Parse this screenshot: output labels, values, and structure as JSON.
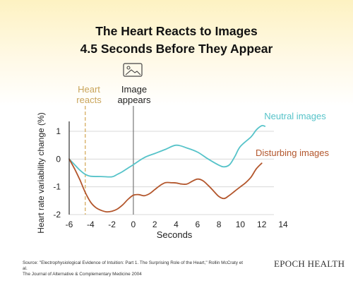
{
  "title": {
    "line1": "The Heart Reacts to Images",
    "line2": "4.5 Seconds Before They Appear"
  },
  "annotations": {
    "heart_reacts": [
      "Heart",
      "reacts"
    ],
    "image_appears": [
      "Image",
      "appears"
    ],
    "image_icon": "image-icon"
  },
  "source": {
    "line1": "Source: \"Electrophysiological Evidence of Intuition: Part 1. The Surprising Role of the Heart,\" Rollin McCraty et al.",
    "line2": "The Journal of Alternative & Complementary Medicine 2004"
  },
  "brand": "EPOCH HEALTH",
  "colors": {
    "neutral": "#56c3c9",
    "disturbing": "#b3562c",
    "heart_reacts": "#d9b36a",
    "image_appears": "#777777",
    "grid": "#d8d8d8",
    "background_top": "#fdf2c2"
  },
  "chart_data": {
    "type": "line",
    "title": "The Heart Reacts to Images 4.5 Seconds Before They Appear",
    "xlabel": "Seconds",
    "ylabel": "Heart rate variability change (%)",
    "xlim": [
      -6,
      14
    ],
    "ylim": [
      -2,
      1
    ],
    "xticks": [
      -6,
      -4,
      -2,
      0,
      2,
      4,
      6,
      8,
      10,
      12,
      14
    ],
    "yticks": [
      1,
      0,
      -1,
      -2
    ],
    "grid": true,
    "legend": "inline labels at line ends (right)",
    "markers": [
      {
        "x": -4.5,
        "label": "Heart reacts",
        "style": "dashed"
      },
      {
        "x": 0,
        "label": "Image appears",
        "style": "solid"
      }
    ],
    "series": [
      {
        "name": "Neutral images",
        "color": "#56c3c9",
        "x": [
          -6,
          -5.5,
          -5,
          -4.5,
          -4,
          -3,
          -2,
          -1.5,
          -1,
          0,
          1,
          2,
          3,
          4,
          5,
          6,
          7,
          8,
          8.5,
          9,
          9.5,
          10,
          11,
          11.5,
          12,
          12.3
        ],
        "y": [
          0.0,
          -0.2,
          -0.4,
          -0.55,
          -0.62,
          -0.63,
          -0.64,
          -0.55,
          -0.45,
          -0.2,
          0.05,
          0.2,
          0.35,
          0.5,
          0.4,
          0.25,
          0.0,
          -0.22,
          -0.28,
          -0.2,
          0.1,
          0.45,
          0.8,
          1.05,
          1.2,
          1.18
        ]
      },
      {
        "name": "Disturbing images",
        "color": "#b3562c",
        "x": [
          -6,
          -5.5,
          -5,
          -4.5,
          -4,
          -3.5,
          -3,
          -2.5,
          -2,
          -1.5,
          -1,
          -0.5,
          0,
          0.5,
          1,
          1.5,
          2,
          2.5,
          3,
          3.5,
          4,
          4.5,
          5,
          5.5,
          6,
          6.5,
          7,
          7.5,
          8,
          8.5,
          9,
          9.5,
          10,
          10.5,
          11,
          11.5,
          12
        ],
        "y": [
          0.0,
          -0.35,
          -0.75,
          -1.2,
          -1.55,
          -1.75,
          -1.85,
          -1.9,
          -1.88,
          -1.8,
          -1.65,
          -1.45,
          -1.3,
          -1.28,
          -1.32,
          -1.25,
          -1.1,
          -0.95,
          -0.85,
          -0.85,
          -0.86,
          -0.9,
          -0.9,
          -0.8,
          -0.72,
          -0.78,
          -0.95,
          -1.15,
          -1.35,
          -1.42,
          -1.3,
          -1.15,
          -1.0,
          -0.85,
          -0.65,
          -0.35,
          -0.15
        ]
      }
    ]
  }
}
